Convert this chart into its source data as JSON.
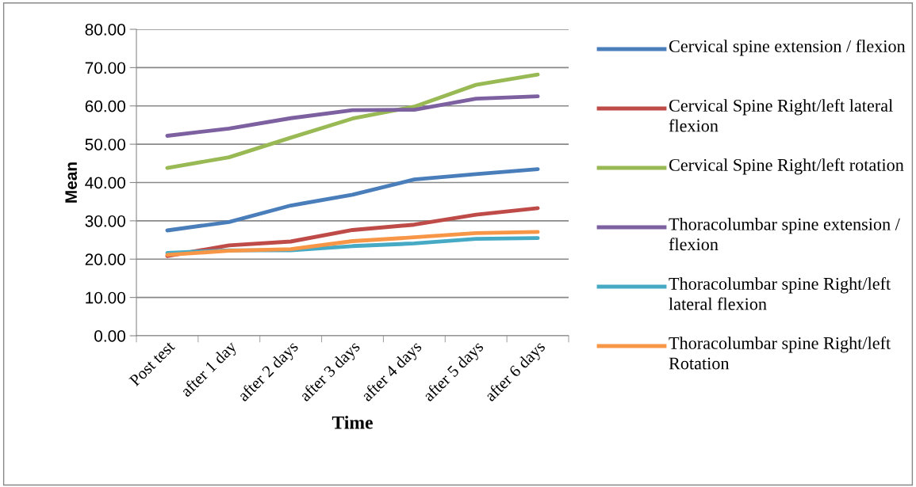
{
  "chart_data": {
    "type": "line",
    "xlabel": "Time",
    "ylabel": "Mean",
    "categories": [
      "Post test",
      "after 1 day",
      "after 2 days",
      "after 3 days",
      "after 4 days",
      "after 5 days",
      "after 6 days"
    ],
    "ylim": [
      0,
      80
    ],
    "yticks": [
      {
        "value": 0,
        "label": "0.00"
      },
      {
        "value": 10,
        "label": "10.00"
      },
      {
        "value": 20,
        "label": "20.00"
      },
      {
        "value": 30,
        "label": "30.00"
      },
      {
        "value": 40,
        "label": "40.00"
      },
      {
        "value": 50,
        "label": "50.00"
      },
      {
        "value": 60,
        "label": "60.00"
      },
      {
        "value": 70,
        "label": "70.00"
      },
      {
        "value": 80,
        "label": "80.00"
      }
    ],
    "grid": "y",
    "legend": "right",
    "marker": "none",
    "line_style": "solid",
    "series": [
      {
        "name": "Cervical spine extension / flexion",
        "color": "#4a7ebb",
        "values": [
          27.5,
          29.7,
          34.0,
          36.8,
          40.8,
          42.2,
          43.5
        ]
      },
      {
        "name": "Cervical Spine Right/left lateral flexion",
        "color": "#be4b48",
        "values": [
          20.8,
          23.6,
          24.6,
          27.6,
          29.0,
          31.6,
          33.3
        ]
      },
      {
        "name": "Cervical Spine Right/left rotation",
        "color": "#98b954",
        "values": [
          43.8,
          46.6,
          51.7,
          56.7,
          59.8,
          65.5,
          68.2
        ]
      },
      {
        "name": "Thoracolumbar spine extension / flexion",
        "color": "#7d60a0",
        "values": [
          52.2,
          54.1,
          56.8,
          58.9,
          59.0,
          61.9,
          62.5
        ]
      },
      {
        "name": "Thoracolumbar spine Right/left lateral flexion",
        "color": "#46aac5",
        "values": [
          21.6,
          22.3,
          22.3,
          23.4,
          24.1,
          25.3,
          25.5
        ]
      },
      {
        "name": "Thoracolumbar spine Right/left Rotation",
        "color": "#f79646",
        "values": [
          21.1,
          22.2,
          22.6,
          24.7,
          25.7,
          26.8,
          27.1
        ]
      }
    ]
  }
}
